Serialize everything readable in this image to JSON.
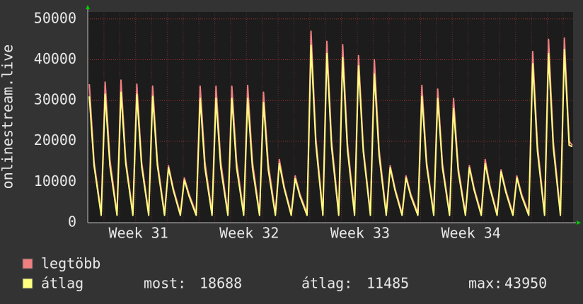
{
  "chart_data": {
    "type": "line",
    "y_label": "onlinestream.live",
    "x": [
      0.1,
      0.4,
      0.85,
      1.1,
      1.4,
      1.85,
      2.1,
      2.4,
      2.85,
      3.1,
      3.4,
      3.85,
      4.1,
      4.4,
      4.85,
      5.1,
      5.4,
      5.85,
      6.1,
      6.4,
      6.85,
      7.1,
      7.4,
      7.85,
      8.1,
      8.4,
      8.85,
      9.1,
      9.4,
      9.85,
      10.1,
      10.4,
      10.85,
      11.1,
      11.4,
      11.85,
      12.1,
      12.4,
      12.85,
      13.1,
      13.4,
      13.85,
      14.1,
      14.4,
      14.85,
      15.1,
      15.4,
      15.85,
      16.1,
      16.4,
      16.85,
      17.1,
      17.4,
      17.85,
      18.1,
      18.4,
      18.85,
      19.1,
      19.4,
      19.85,
      20.1,
      20.4,
      20.85,
      21.1,
      21.4,
      21.85,
      22.1,
      22.4,
      22.85,
      23.1,
      23.4,
      23.85,
      24.1,
      24.4,
      24.85,
      25.1,
      25.4,
      25.85,
      26.1,
      26.4,
      26.85,
      27.1,
      27.4,
      27.85,
      28.1,
      28.4,
      28.85,
      29.1,
      29.4,
      29.85,
      30.1,
      30.4,
      30.6
    ],
    "series": [
      {
        "name": "legtöbb",
        "color": "#f08080",
        "values": [
          34000,
          15000,
          2300,
          34500,
          15500,
          2300,
          35000,
          15500,
          2300,
          34000,
          15000,
          2300,
          33500,
          15000,
          2300,
          14000,
          8500,
          2300,
          11000,
          7000,
          2300,
          33500,
          15000,
          2300,
          33500,
          15000,
          2300,
          33500,
          15000,
          2300,
          33700,
          15000,
          2300,
          32000,
          14500,
          2300,
          15500,
          9000,
          2300,
          11500,
          7000,
          2300,
          47000,
          21000,
          2500,
          44500,
          20000,
          2500,
          43700,
          19500,
          2500,
          41000,
          18500,
          2500,
          40000,
          18000,
          2300,
          14000,
          8500,
          2300,
          11500,
          7000,
          2300,
          33700,
          15000,
          2300,
          32800,
          14500,
          2300,
          30500,
          13500,
          2300,
          14000,
          8500,
          2300,
          15500,
          9000,
          2300,
          13000,
          8000,
          2300,
          11500,
          7000,
          2300,
          42000,
          19000,
          2300,
          45000,
          20000,
          2300,
          45300,
          20000,
          19000
        ]
      },
      {
        "name": "átlag",
        "color": "#ffff80",
        "values": [
          31000,
          14000,
          1800,
          31500,
          14000,
          1800,
          32000,
          14500,
          1800,
          31500,
          14000,
          1800,
          31000,
          14000,
          1800,
          13500,
          8000,
          1800,
          10500,
          6500,
          1800,
          30500,
          13500,
          1800,
          30500,
          13500,
          1800,
          30500,
          13500,
          1800,
          30500,
          13500,
          1800,
          29500,
          13000,
          1800,
          14500,
          8500,
          1800,
          10800,
          6500,
          1800,
          43500,
          19500,
          1800,
          41500,
          18500,
          1800,
          40500,
          18000,
          1800,
          38500,
          17500,
          1800,
          36500,
          16500,
          1800,
          13500,
          8000,
          1800,
          11000,
          6500,
          1800,
          31000,
          14000,
          1800,
          30500,
          13500,
          1800,
          28000,
          12500,
          1800,
          13500,
          8000,
          1800,
          14500,
          8500,
          1800,
          12500,
          7500,
          1800,
          11000,
          6500,
          1800,
          39000,
          17500,
          1800,
          41500,
          18500,
          1800,
          42500,
          19000,
          18688
        ]
      }
    ],
    "xlim": [
      0,
      30.65
    ],
    "xticks": [
      {
        "value": 3.2,
        "label": "Week 31"
      },
      {
        "value": 10.2,
        "label": "Week 32"
      },
      {
        "value": 17.2,
        "label": "Week 33"
      },
      {
        "value": 24.2,
        "label": "Week 34"
      }
    ],
    "ylim": [
      0,
      51700
    ],
    "yticks": [
      0,
      10000,
      20000,
      30000,
      40000,
      50000
    ],
    "grid": true,
    "stats": [
      {
        "label": "most:",
        "value": 18688
      },
      {
        "label": "átlag:",
        "value": 11485
      },
      {
        "label": "max:",
        "value": 43950
      }
    ]
  }
}
